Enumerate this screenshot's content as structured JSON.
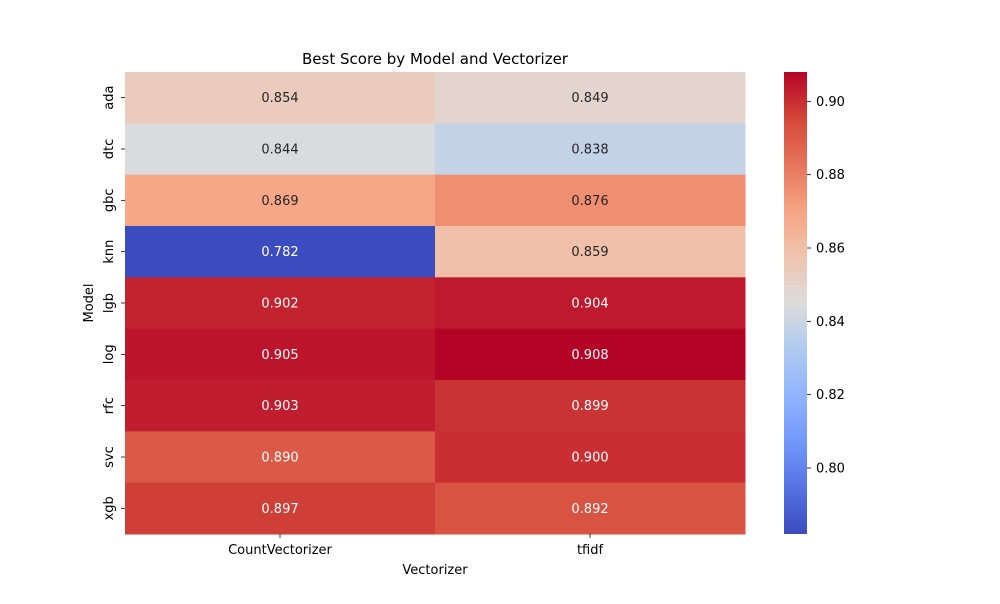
{
  "chart_data": {
    "type": "heatmap",
    "title": "Best Score by Model and Vectorizer",
    "xlabel": "Vectorizer",
    "ylabel": "Model",
    "x_categories": [
      "CountVectorizer",
      "tfidf"
    ],
    "y_categories": [
      "ada",
      "dtc",
      "gbc",
      "knn",
      "lgb",
      "log",
      "rfc",
      "svc",
      "xgb"
    ],
    "values": [
      [
        0.854,
        0.849
      ],
      [
        0.844,
        0.838
      ],
      [
        0.869,
        0.876
      ],
      [
        0.782,
        0.859
      ],
      [
        0.902,
        0.904
      ],
      [
        0.905,
        0.908
      ],
      [
        0.903,
        0.899
      ],
      [
        0.89,
        0.9
      ],
      [
        0.897,
        0.892
      ]
    ],
    "value_labels": [
      [
        "0.854",
        "0.849"
      ],
      [
        "0.844",
        "0.838"
      ],
      [
        "0.869",
        "0.876"
      ],
      [
        "0.782",
        "0.859"
      ],
      [
        "0.902",
        "0.904"
      ],
      [
        "0.905",
        "0.908"
      ],
      [
        "0.903",
        "0.899"
      ],
      [
        "0.890",
        "0.900"
      ],
      [
        "0.897",
        "0.892"
      ]
    ],
    "colormap": "coolwarm",
    "colorbar": {
      "range": [
        0.782,
        0.908
      ],
      "ticks": [
        0.8,
        0.82,
        0.84,
        0.86,
        0.88,
        0.9
      ],
      "tick_labels": [
        "0.80",
        "0.82",
        "0.84",
        "0.86",
        "0.88",
        "0.90"
      ]
    },
    "colors": {
      "low": "#3b4cc0",
      "mid": "#dddcdc",
      "high": "#b40426",
      "label_dark": "#262626",
      "label_light": "#ffffff"
    }
  }
}
